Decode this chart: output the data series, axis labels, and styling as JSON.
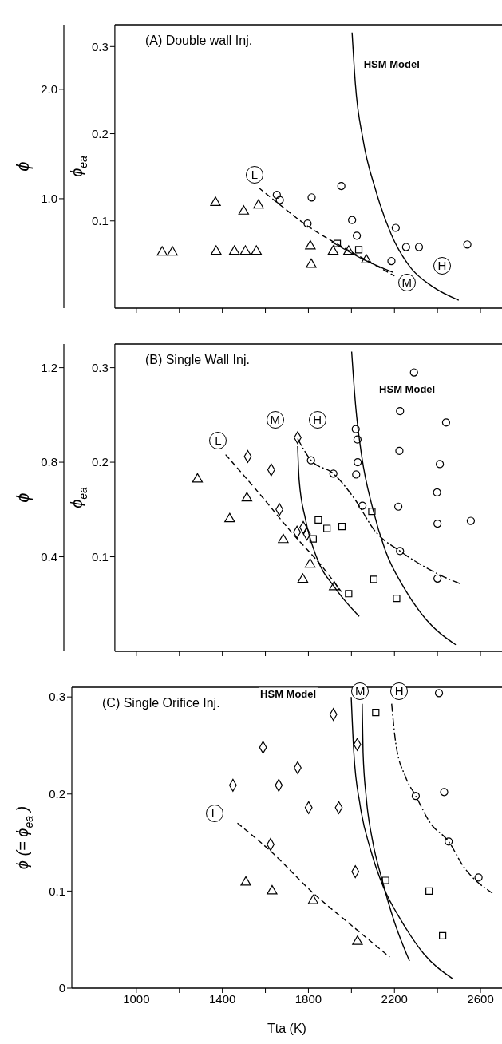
{
  "chart_data": [
    {
      "type": "scatter",
      "title": "(A) Double wall Inj.",
      "ylabel": "ϕ$_{ea}$",
      "y2label": "ϕ",
      "xlim": [
        900,
        2700
      ],
      "xticks": [
        1000,
        {
          "value": 1200,
          "label": null
        },
        1400,
        {
          "value": 1600,
          "label": null
        },
        1800,
        {
          "value": 2000,
          "label": null
        },
        2200,
        {
          "value": 2400,
          "label": null
        },
        2600
      ],
      "ylim": [
        0,
        0.325
      ],
      "yticks": [
        0.1,
        0.2,
        0.3
      ],
      "y2lim": [
        0,
        2.59
      ],
      "y2ticks": [
        {
          "value": 1,
          "label": "1.0"
        },
        {
          "value": 2,
          "label": "2.0"
        }
      ],
      "tick_labels": "y",
      "series": [
        {
          "marker": "triangle",
          "color": "#000000",
          "x": [
            1120,
            1168,
            1371,
            1456,
            1507,
            1558,
            1368,
            1499,
            1568,
            1809,
            1813,
            1915,
            1987,
            2069
          ],
          "values": [
            0.064,
            0.064,
            0.065,
            0.065,
            0.065,
            0.065,
            0.121,
            0.111,
            0.118,
            0.071,
            0.05,
            0.065,
            0.065,
            0.055
          ]
        },
        {
          "marker": "circle",
          "color": "#000000",
          "x": [
            1653,
            1667,
            1815,
            1953,
            1796,
            2003,
            2025,
            2206,
            2186,
            2254,
            2314,
            2539
          ],
          "values": [
            0.13,
            0.124,
            0.127,
            0.14,
            0.097,
            0.101,
            0.083,
            0.092,
            0.054,
            0.07,
            0.07,
            0.073
          ]
        },
        {
          "marker": "square",
          "color": "#000000",
          "x": [
            1934,
            2034
          ],
          "values": [
            0.074,
            0.067
          ]
        },
        {
          "type": "line",
          "line_style": "dashed",
          "color": "#000000",
          "x": [
            1569,
            1660,
            1791,
            1923,
            2069,
            2200
          ],
          "values": [
            0.138,
            0.12,
            0.095,
            0.075,
            0.055,
            0.037
          ]
        },
        {
          "type": "line",
          "line_style": "solid",
          "color": "#000000",
          "x": [
            1908,
            2054,
            2193
          ],
          "values": [
            0.076,
            0.056,
            0.041
          ]
        },
        {
          "type": "line",
          "line_style": "solid",
          "color": "#000000",
          "x": [
            2003,
            2018,
            2054,
            2113,
            2186,
            2273,
            2375,
            2499
          ],
          "values": [
            0.316,
            0.258,
            0.193,
            0.135,
            0.084,
            0.047,
            0.025,
            0.009
          ]
        }
      ],
      "annotations": [
        "L",
        "M",
        "H",
        "HSM Model"
      ]
    },
    {
      "type": "scatter",
      "title": "(B) Single Wall Inj.",
      "ylabel": "ϕ$_{ea}$",
      "y2label": "ϕ",
      "xlim": [
        900,
        2700
      ],
      "xticks": [
        1000,
        {
          "value": 1200,
          "label": null
        },
        1400,
        {
          "value": 1600,
          "label": null
        },
        1800,
        {
          "value": 2000,
          "label": null
        },
        2200,
        {
          "value": 2400,
          "label": null
        },
        2600
      ],
      "ylim": [
        0,
        0.325
      ],
      "yticks": [
        0.1,
        0.2,
        0.3
      ],
      "y2lim": [
        0,
        1.3
      ],
      "y2ticks": [
        0.4,
        0.8,
        1.2
      ],
      "tick_labels": "y",
      "series": [
        {
          "marker": "triangle",
          "color": "#000000",
          "x": [
            1284,
            1434,
            1514,
            1683,
            1808,
            1774,
            1920
          ],
          "values": [
            0.182,
            0.14,
            0.162,
            0.118,
            0.092,
            0.076,
            0.068
          ]
        },
        {
          "marker": "diamond",
          "color": "#000000",
          "x": [
            1518,
            1627,
            1665,
            1750,
            1747,
            1776,
            1793
          ],
          "values": [
            0.206,
            0.192,
            0.15,
            0.226,
            0.126,
            0.131,
            0.124
          ]
        },
        {
          "marker": "square",
          "color": "#000000",
          "x": [
            1822,
            1846,
            1886,
            1956,
            2095,
            1987,
            2104,
            2210
          ],
          "values": [
            0.119,
            0.139,
            0.13,
            0.132,
            0.148,
            0.061,
            0.076,
            0.056
          ]
        },
        {
          "marker": "circle",
          "color": "#000000",
          "x": [
            2291,
            2226,
            2440,
            2020,
            2028,
            2029,
            2022,
            1812,
            1916,
            2223,
            2411,
            2398,
            2051,
            2218,
            2400,
            2555,
            2226,
            2400
          ],
          "values": [
            0.295,
            0.254,
            0.242,
            0.235,
            0.224,
            0.2,
            0.187,
            0.202,
            0.188,
            0.212,
            0.198,
            0.168,
            0.154,
            0.153,
            0.135,
            0.138,
            0.106,
            0.077
          ]
        },
        {
          "type": "line",
          "line_style": "dashed",
          "color": "#000000",
          "x": [
            1415,
            1575,
            1721,
            1866,
            1953
          ],
          "values": [
            0.208,
            0.166,
            0.126,
            0.089,
            0.063
          ]
        },
        {
          "type": "line",
          "line_style": "solid",
          "color": "#000000",
          "x": [
            1750,
            1757,
            1786,
            1837,
            1924,
            2036
          ],
          "values": [
            0.217,
            0.181,
            0.14,
            0.1,
            0.067,
            0.037
          ]
        },
        {
          "type": "line",
          "line_style": "dashdot",
          "color": "#000000",
          "x": [
            1750,
            1812,
            1916,
            2012,
            2114,
            2226,
            2400,
            2510
          ],
          "values": [
            0.225,
            0.202,
            0.188,
            0.162,
            0.126,
            0.106,
            0.082,
            0.071
          ]
        },
        {
          "type": "line",
          "line_style": "solid",
          "color": "#000000",
          "x": [
            2001,
            2019,
            2048,
            2099,
            2157,
            2245,
            2346,
            2485
          ],
          "values": [
            0.317,
            0.261,
            0.206,
            0.151,
            0.107,
            0.067,
            0.034,
            0.007
          ]
        }
      ],
      "annotations": [
        "L",
        "M",
        "H",
        "HSM Model"
      ]
    },
    {
      "type": "scatter",
      "title": "(C) Single Orifice Inj.",
      "xlabel": "Tta (K)",
      "ylabel": "ϕ (= ϕ$_{ea}$ )",
      "xlim": [
        700,
        2700
      ],
      "xticks": [
        1000,
        {
          "value": 1200,
          "label": null
        },
        1400,
        {
          "value": 1600,
          "label": null
        },
        1800,
        {
          "value": 2000,
          "label": null
        },
        2200,
        {
          "value": 2400,
          "label": null
        },
        2600
      ],
      "ylim": [
        0,
        0.31
      ],
      "yticks": [
        0,
        0.1,
        0.2,
        0.3
      ],
      "series": [
        {
          "marker": "diamond",
          "color": "#000000",
          "x": [
            1916,
            1589,
            1449,
            1662,
            1750,
            1801,
            1941,
            1624,
            2018,
            2027
          ],
          "values": [
            0.282,
            0.248,
            0.209,
            0.209,
            0.227,
            0.186,
            0.186,
            0.148,
            0.12,
            0.251
          ]
        },
        {
          "marker": "triangle",
          "color": "#000000",
          "x": [
            1509,
            1631,
            1822,
            2028
          ],
          "values": [
            0.109,
            0.1,
            0.09,
            0.048
          ]
        },
        {
          "marker": "square",
          "color": "#000000",
          "x": [
            2113,
            2159,
            2361,
            2424
          ],
          "values": [
            0.284,
            0.111,
            0.1,
            0.054
          ]
        },
        {
          "marker": "circle",
          "color": "#000000",
          "x": [
            2407,
            2299,
            2431,
            2452,
            2591
          ],
          "values": [
            0.304,
            0.198,
            0.202,
            0.151,
            0.114
          ]
        },
        {
          "type": "line",
          "line_style": "dashed",
          "color": "#000000",
          "x": [
            1470,
            1625,
            1822,
            2004,
            2178
          ],
          "values": [
            0.17,
            0.141,
            0.098,
            0.064,
            0.032
          ]
        },
        {
          "type": "line",
          "line_style": "solid",
          "color": "#000000",
          "x": [
            2050,
            2054,
            2069,
            2098,
            2142,
            2200,
            2270
          ],
          "values": [
            0.293,
            0.243,
            0.196,
            0.152,
            0.112,
            0.068,
            0.028
          ]
        },
        {
          "type": "line",
          "line_style": "dashdot",
          "color": "#000000",
          "x": [
            2187,
            2207,
            2251,
            2299,
            2367,
            2452,
            2519,
            2655
          ],
          "values": [
            0.293,
            0.251,
            0.218,
            0.198,
            0.17,
            0.151,
            0.126,
            0.098
          ]
        },
        {
          "type": "line",
          "line_style": "solid",
          "color": "#000000",
          "x": [
            1999,
            2011,
            2040,
            2091,
            2149,
            2236,
            2338,
            2469
          ],
          "values": [
            0.3,
            0.243,
            0.189,
            0.141,
            0.104,
            0.068,
            0.035,
            0.01
          ]
        }
      ],
      "annotations": [
        "L",
        "M",
        "H",
        "HSM Model"
      ]
    }
  ]
}
